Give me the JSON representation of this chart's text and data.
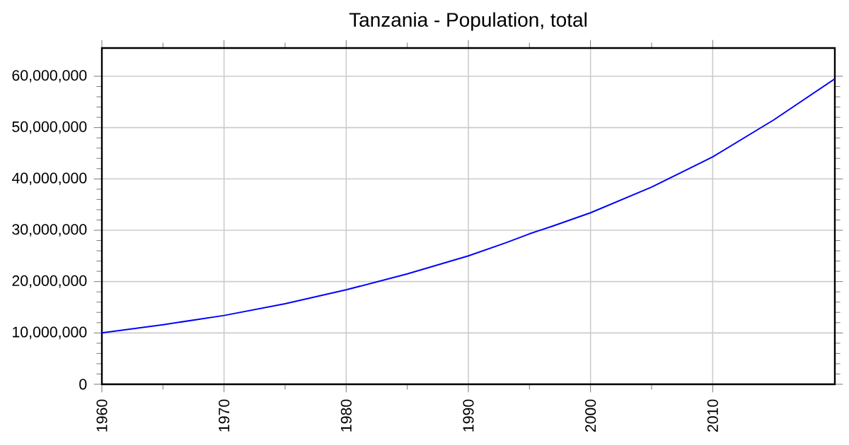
{
  "chart_data": {
    "type": "line",
    "title": "Tanzania - Population, total",
    "x": [
      1960,
      1965,
      1970,
      1975,
      1980,
      1985,
      1990,
      1993,
      1995,
      1997,
      2000,
      2005,
      2010,
      2015,
      2020
    ],
    "series": [
      {
        "color": "#0000ff",
        "values": [
          10000000,
          11600000,
          13400000,
          15700000,
          18400000,
          21500000,
          25000000,
          27500000,
          29300000,
          30900000,
          33400000,
          38400000,
          44300000,
          51500000,
          59500000
        ]
      }
    ],
    "xlim": [
      1960,
      2020
    ],
    "ylim": [
      0,
      65500000
    ],
    "xticks": [
      1960,
      1970,
      1980,
      1990,
      2000,
      2010
    ],
    "yticks": [
      {
        "value": 0,
        "label": "0"
      },
      {
        "value": 10000000,
        "label": "10,000,000"
      },
      {
        "value": 20000000,
        "label": "20,000,000"
      },
      {
        "value": 30000000,
        "label": "30,000,000"
      },
      {
        "value": 40000000,
        "label": "40,000,000"
      },
      {
        "value": 50000000,
        "label": "50,000,000"
      },
      {
        "value": 60000000,
        "label": "60,000,000"
      }
    ],
    "grid": true,
    "marker": "none",
    "line_style": "solid"
  }
}
